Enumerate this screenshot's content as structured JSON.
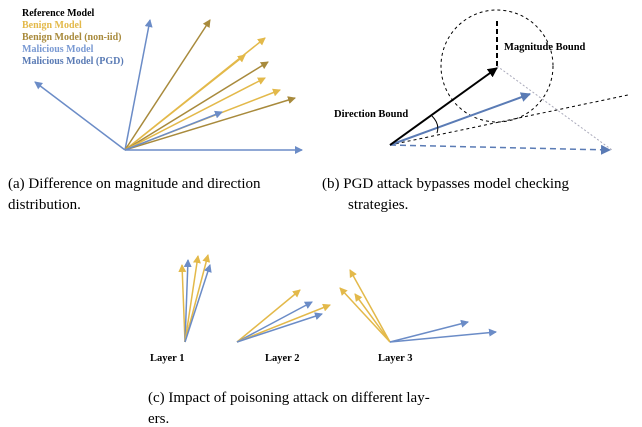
{
  "panel_a": {
    "legend": [
      "Reference Model",
      "Benign Model",
      "Benign Model (non-iid)",
      "Malicious Model",
      "Malicious Model (PGD)"
    ],
    "caption": [
      "(a) Difference on magnitude and direction",
      "distribution."
    ]
  },
  "panel_b": {
    "magnitude_label": "Magnitude Bound",
    "direction_label": "Direction Bound",
    "caption": [
      "(b) PGD attack bypasses model checking",
      "strategies."
    ]
  },
  "panel_c": {
    "layers": [
      "Layer 1",
      "Layer 2",
      "Layer 3"
    ],
    "caption": [
      "(c) Impact of poisoning attack on different lay-",
      "ers."
    ]
  }
}
